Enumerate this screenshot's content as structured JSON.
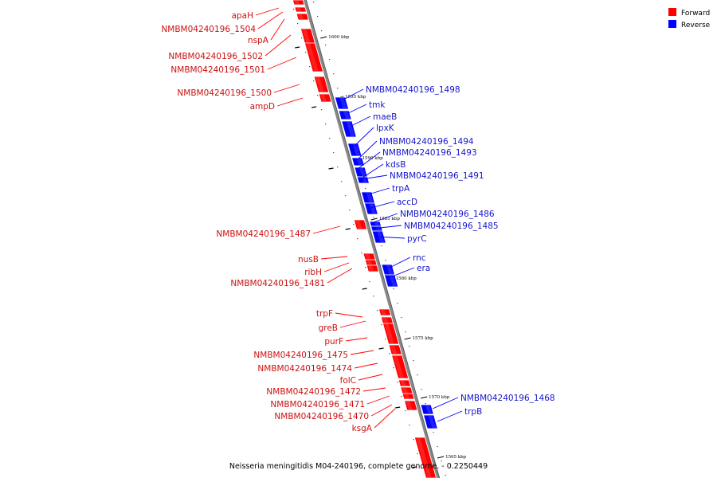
{
  "legend": {
    "forward_label": "Forward",
    "reverse_label": "Reverse",
    "forward_color": "#ff0000",
    "reverse_color": "#0000ff"
  },
  "caption": "Neisseria meningitidis M04-240196, complete genome. - 0.2250449",
  "ticks": [
    "1600 kbp",
    "1595 kbp",
    "1590 kbp",
    "1585 kbp",
    "1580 kbp",
    "1575 kbp",
    "1570 kbp",
    "1565 kbp"
  ],
  "forward_genes": [
    "apaH",
    "NMBM04240196_1504",
    "nspA",
    "NMBM04240196_1502",
    "NMBM04240196_1501",
    "NMBM04240196_1500",
    "ampD",
    "NMBM04240196_1487",
    "nusB",
    "ribH",
    "NMBM04240196_1481",
    "trpF",
    "greB",
    "purF",
    "NMBM04240196_1475",
    "NMBM04240196_1474",
    "folC",
    "NMBM04240196_1472",
    "NMBM04240196_1471",
    "NMBM04240196_1470",
    "ksgA"
  ],
  "reverse_genes": [
    "NMBM04240196_1498",
    "tmk",
    "maeB",
    "lpxK",
    "NMBM04240196_1494",
    "NMBM04240196_1493",
    "kdsB",
    "NMBM04240196_1491",
    "trpA",
    "accD",
    "NMBM04240196_1486",
    "NMBM04240196_1485",
    "pyrC",
    "rnc",
    "era",
    "NMBM04240196_1468",
    "trpB"
  ]
}
